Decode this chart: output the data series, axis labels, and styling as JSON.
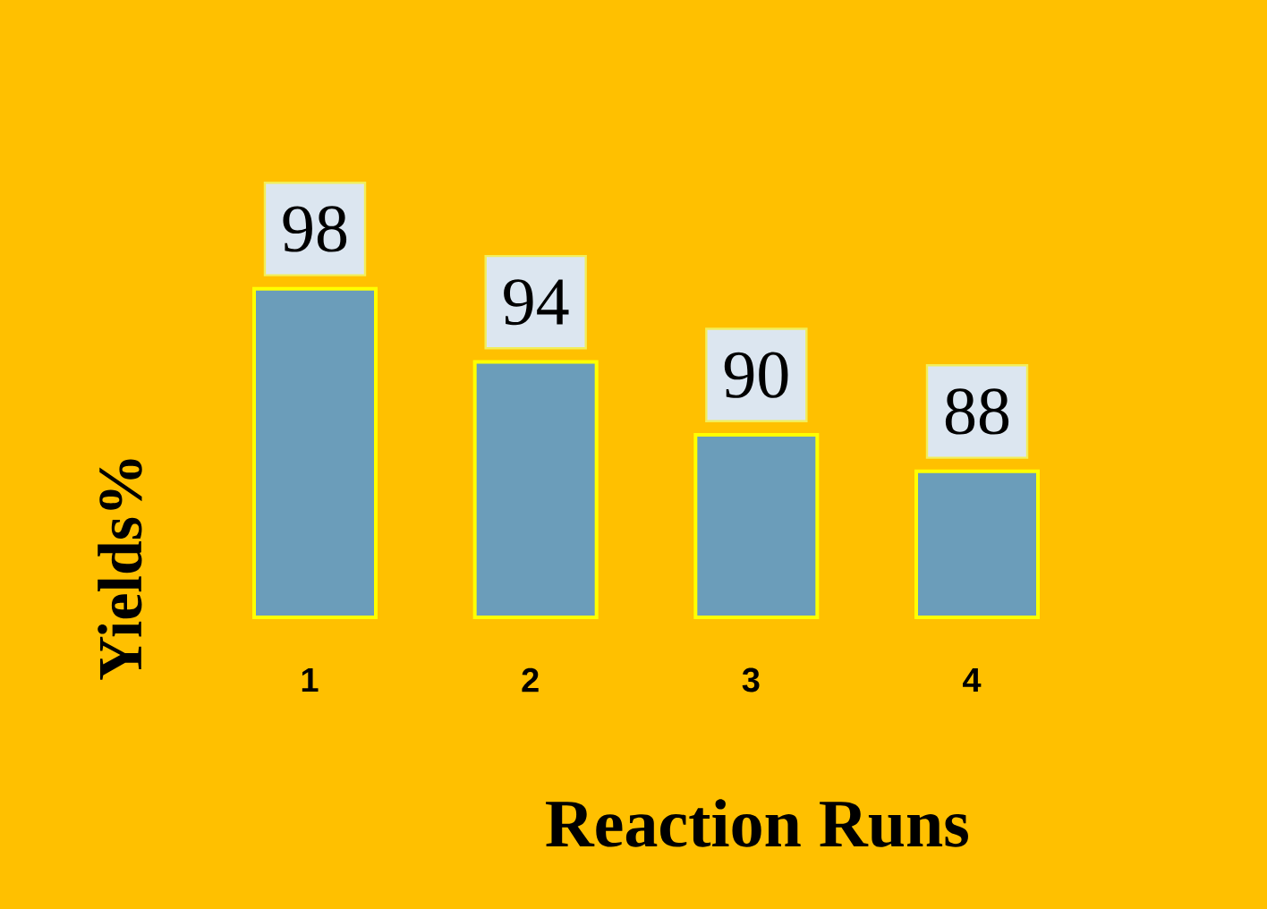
{
  "chart_data": {
    "type": "bar",
    "xlabel": "Reaction Runs",
    "ylabel": "Yields%",
    "categories": [
      "1",
      "2",
      "3",
      "4"
    ],
    "values": [
      98,
      94,
      90,
      88
    ],
    "color": "#6b9dba",
    "data_labels": true,
    "ylim": [
      80,
      98
    ],
    "tick_labels": "x"
  }
}
